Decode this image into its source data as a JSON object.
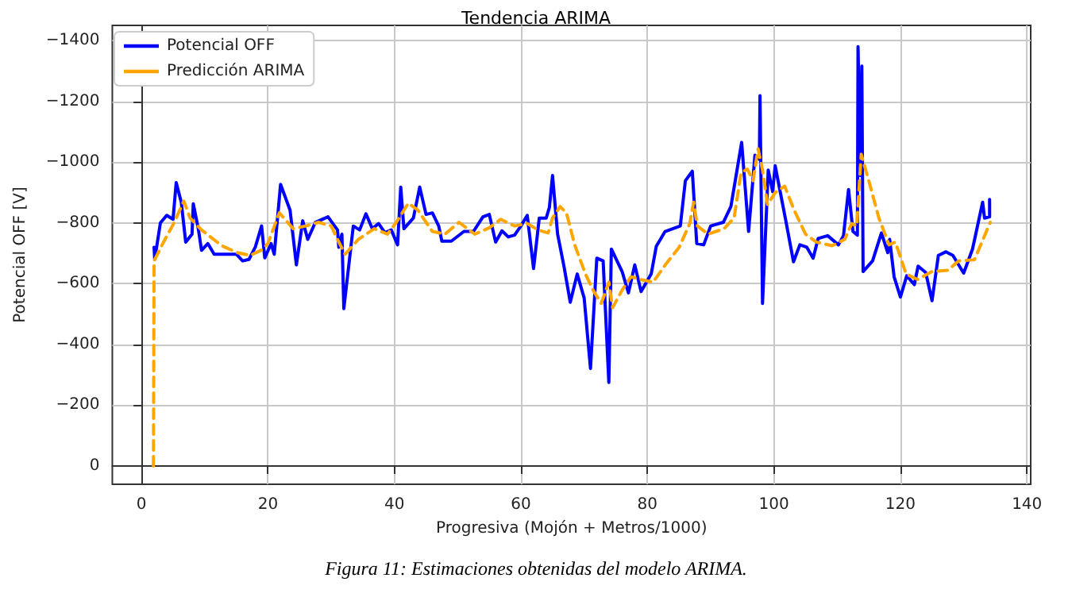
{
  "chart_data": {
    "type": "line",
    "title": "Tendencia ARIMA",
    "xlabel": "Progresiva (Mojón + Metros/1000)",
    "ylabel": "Potencial OFF [V]",
    "annotations": [
      "Figura 11: Estimaciones obtenidas del modelo ARIMA."
    ],
    "xlim": [
      -4.6,
      140.6
    ],
    "xticks": [
      0,
      20,
      40,
      60,
      80,
      100,
      120,
      140
    ],
    "ylim": [
      60,
      -1450
    ],
    "yticks": [
      -1400,
      -1200,
      -1000,
      -800,
      -600,
      -400,
      -200,
      0
    ],
    "grid": true,
    "legend": "top left",
    "marker": "none",
    "series": [
      {
        "name": "Potencial OFF",
        "color": "#0000ff",
        "line_style": "solid",
        "x": [
          2,
          2.1,
          3,
          4,
          5,
          5.5,
          6.3,
          7,
          8,
          8.2,
          9,
          9.5,
          10.5,
          11.5,
          15,
          16,
          17,
          18,
          19,
          19.5,
          20.5,
          21,
          22,
          23.5,
          24.5,
          25.5,
          26.3,
          27.5,
          29.5,
          31,
          31.2,
          31.7,
          32,
          33.5,
          34.5,
          35.5,
          36.5,
          37.5,
          38.5,
          39.5,
          40.5,
          41,
          41.5,
          43,
          44,
          45,
          46,
          47,
          47.5,
          49,
          51,
          52.5,
          54,
          55,
          56,
          57,
          58,
          59,
          60,
          61,
          62,
          62.9,
          64,
          64.5,
          65,
          65.8,
          66.8,
          67.8,
          68.9,
          70,
          71,
          72,
          73,
          73.9,
          74.3,
          76,
          77,
          78,
          79,
          80.6,
          81.4,
          82.8,
          85.2,
          86,
          87.1,
          87.8,
          88.9,
          90,
          92,
          93.2,
          94.9,
          96,
          97,
          97.7,
          97.8,
          98.2,
          99.1,
          99.8,
          100.2,
          101.8,
          103.1,
          104.1,
          105.2,
          106.2,
          107,
          108.5,
          110.2,
          111,
          111.8,
          112.5,
          113.2,
          113.3,
          113.7,
          113.9,
          114.1,
          115.6,
          117,
          118,
          118.3,
          119,
          120,
          121,
          122.2,
          122.8,
          124,
          125,
          126,
          127.2,
          128.3,
          130,
          131.4,
          133,
          133.3,
          134.1,
          134.1
        ],
        "values": [
          -720,
          -680,
          -800,
          -825,
          -812,
          -933,
          -868,
          -737,
          -763,
          -863,
          -780,
          -710,
          -732,
          -697,
          -697,
          -675,
          -680,
          -720,
          -790,
          -685,
          -732,
          -697,
          -927,
          -842,
          -662,
          -807,
          -746,
          -802,
          -820,
          -777,
          -720,
          -763,
          -518,
          -790,
          -777,
          -830,
          -781,
          -798,
          -768,
          -777,
          -728,
          -918,
          -781,
          -816,
          -918,
          -828,
          -833,
          -790,
          -740,
          -740,
          -772,
          -772,
          -820,
          -828,
          -737,
          -774,
          -754,
          -760,
          -790,
          -825,
          -650,
          -816,
          -816,
          -851,
          -956,
          -763,
          -658,
          -539,
          -632,
          -553,
          -321,
          -684,
          -675,
          -275,
          -714,
          -640,
          -570,
          -662,
          -574,
          -632,
          -723,
          -772,
          -790,
          -939,
          -970,
          -732,
          -728,
          -790,
          -802,
          -854,
          -1065,
          -772,
          -1023,
          -1009,
          -1219,
          -535,
          -974,
          -903,
          -988,
          -816,
          -672,
          -728,
          -720,
          -684,
          -749,
          -758,
          -728,
          -758,
          -910,
          -772,
          -760,
          -1380,
          -956,
          -1316,
          -640,
          -675,
          -767,
          -702,
          -746,
          -623,
          -556,
          -626,
          -597,
          -658,
          -637,
          -544,
          -693,
          -705,
          -693,
          -635,
          -714,
          -868,
          -816,
          -820,
          -877
        ]
      },
      {
        "name": "Predicción ARIMA",
        "color": "#ffa500",
        "line_style": "dashed",
        "x": [
          1.9,
          2,
          3.5,
          5.2,
          6.7,
          7.7,
          9.5,
          12.7,
          15.2,
          17.2,
          19,
          20,
          21.8,
          24,
          26,
          28,
          30,
          31,
          32.2,
          34.3,
          36.8,
          38.9,
          40.3,
          42.2,
          43.7,
          46,
          48,
          50.2,
          52.7,
          55,
          56.8,
          59,
          61,
          62.7,
          64.3,
          65,
          66.2,
          67.2,
          68.5,
          70.2,
          71.4,
          72.7,
          73.9,
          74.5,
          76,
          77.4,
          78.9,
          80.9,
          83,
          85,
          86.7,
          87.3,
          87.9,
          89.6,
          92.1,
          93.7,
          94.8,
          95.8,
          96.7,
          97.5,
          98.2,
          99,
          100.2,
          101.7,
          103.2,
          105,
          106.7,
          109.2,
          111.2,
          112.3,
          113.1,
          113.8,
          115,
          116.6,
          118.2,
          119.2,
          120.9,
          122.7,
          125,
          127.5,
          129.2,
          131.7,
          132.7,
          134.2
        ],
        "values": [
          0,
          -675,
          -737,
          -802,
          -872,
          -816,
          -777,
          -725,
          -702,
          -693,
          -711,
          -732,
          -833,
          -781,
          -790,
          -802,
          -790,
          -746,
          -697,
          -746,
          -781,
          -763,
          -802,
          -865,
          -842,
          -772,
          -763,
          -802,
          -763,
          -784,
          -812,
          -790,
          -798,
          -777,
          -767,
          -816,
          -854,
          -833,
          -728,
          -632,
          -579,
          -535,
          -605,
          -521,
          -579,
          -623,
          -614,
          -605,
          -667,
          -719,
          -798,
          -868,
          -790,
          -763,
          -781,
          -816,
          -965,
          -977,
          -939,
          -1044,
          -974,
          -860,
          -900,
          -921,
          -842,
          -763,
          -737,
          -725,
          -746,
          -798,
          -790,
          -1026,
          -939,
          -816,
          -728,
          -737,
          -632,
          -614,
          -640,
          -644,
          -675,
          -679,
          -728,
          -802
        ]
      }
    ]
  }
}
